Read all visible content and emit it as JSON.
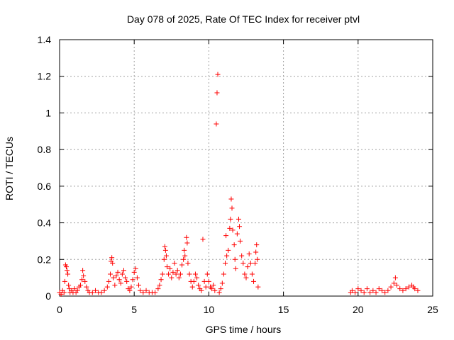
{
  "chart_data": {
    "type": "scatter",
    "title": "Day 078 of 2025, Rate Of TEC Index for receiver ptvl",
    "xlabel": "GPS time / hours",
    "ylabel": "ROTI / TECUs",
    "xlim": [
      0,
      25
    ],
    "ylim": [
      0,
      1.4
    ],
    "x_ticks": [
      0,
      5,
      10,
      15,
      20,
      25
    ],
    "x_tick_labels": [
      "0",
      "5",
      "10",
      "15",
      "20",
      "25"
    ],
    "y_ticks": [
      0,
      0.2,
      0.4,
      0.6,
      0.8,
      1,
      1.2,
      1.4
    ],
    "y_tick_labels": [
      "0",
      "0.2",
      "0.4",
      "0.6",
      "0.8",
      "1",
      "1.2",
      "1.4"
    ],
    "grid": true,
    "marker": "plus",
    "color": "#ff0000",
    "series": [
      {
        "name": "ROTI",
        "points": [
          [
            0.0,
            0.02
          ],
          [
            0.1,
            0.01
          ],
          [
            0.2,
            0.03
          ],
          [
            0.3,
            0.02
          ],
          [
            0.35,
            0.08
          ],
          [
            0.4,
            0.17
          ],
          [
            0.45,
            0.16
          ],
          [
            0.5,
            0.14
          ],
          [
            0.55,
            0.12
          ],
          [
            0.6,
            0.06
          ],
          [
            0.65,
            0.04
          ],
          [
            0.7,
            0.02
          ],
          [
            0.8,
            0.03
          ],
          [
            0.9,
            0.02
          ],
          [
            1.0,
            0.04
          ],
          [
            1.1,
            0.02
          ],
          [
            1.2,
            0.03
          ],
          [
            1.3,
            0.05
          ],
          [
            1.4,
            0.06
          ],
          [
            1.5,
            0.09
          ],
          [
            1.55,
            0.14
          ],
          [
            1.6,
            0.11
          ],
          [
            1.7,
            0.08
          ],
          [
            1.8,
            0.05
          ],
          [
            1.9,
            0.03
          ],
          [
            2.0,
            0.02
          ],
          [
            2.2,
            0.02
          ],
          [
            2.4,
            0.03
          ],
          [
            2.6,
            0.02
          ],
          [
            2.8,
            0.02
          ],
          [
            3.0,
            0.03
          ],
          [
            3.2,
            0.05
          ],
          [
            3.3,
            0.08
          ],
          [
            3.4,
            0.12
          ],
          [
            3.45,
            0.19
          ],
          [
            3.5,
            0.21
          ],
          [
            3.55,
            0.18
          ],
          [
            3.6,
            0.1
          ],
          [
            3.7,
            0.06
          ],
          [
            3.8,
            0.11
          ],
          [
            3.9,
            0.13
          ],
          [
            4.0,
            0.09
          ],
          [
            4.1,
            0.07
          ],
          [
            4.2,
            0.12
          ],
          [
            4.3,
            0.14
          ],
          [
            4.4,
            0.1
          ],
          [
            4.5,
            0.08
          ],
          [
            4.6,
            0.04
          ],
          [
            4.7,
            0.03
          ],
          [
            4.8,
            0.05
          ],
          [
            4.9,
            0.09
          ],
          [
            5.0,
            0.13
          ],
          [
            5.1,
            0.15
          ],
          [
            5.2,
            0.1
          ],
          [
            5.3,
            0.06
          ],
          [
            5.4,
            0.03
          ],
          [
            5.6,
            0.02
          ],
          [
            5.8,
            0.03
          ],
          [
            6.0,
            0.02
          ],
          [
            6.2,
            0.02
          ],
          [
            6.4,
            0.02
          ],
          [
            6.6,
            0.04
          ],
          [
            6.7,
            0.06
          ],
          [
            6.8,
            0.09
          ],
          [
            6.9,
            0.12
          ],
          [
            7.0,
            0.2
          ],
          [
            7.05,
            0.27
          ],
          [
            7.1,
            0.25
          ],
          [
            7.15,
            0.22
          ],
          [
            7.2,
            0.16
          ],
          [
            7.3,
            0.12
          ],
          [
            7.4,
            0.15
          ],
          [
            7.5,
            0.1
          ],
          [
            7.6,
            0.13
          ],
          [
            7.7,
            0.18
          ],
          [
            7.8,
            0.12
          ],
          [
            7.9,
            0.14
          ],
          [
            8.0,
            0.1
          ],
          [
            8.1,
            0.12
          ],
          [
            8.2,
            0.17
          ],
          [
            8.3,
            0.2
          ],
          [
            8.35,
            0.25
          ],
          [
            8.4,
            0.22
          ],
          [
            8.5,
            0.32
          ],
          [
            8.55,
            0.29
          ],
          [
            8.6,
            0.18
          ],
          [
            8.7,
            0.12
          ],
          [
            8.8,
            0.08
          ],
          [
            8.9,
            0.05
          ],
          [
            9.0,
            0.08
          ],
          [
            9.1,
            0.12
          ],
          [
            9.2,
            0.1
          ],
          [
            9.3,
            0.06
          ],
          [
            9.4,
            0.04
          ],
          [
            9.5,
            0.03
          ],
          [
            9.6,
            0.31
          ],
          [
            9.7,
            0.08
          ],
          [
            9.8,
            0.05
          ],
          [
            9.9,
            0.12
          ],
          [
            10.0,
            0.08
          ],
          [
            10.1,
            0.05
          ],
          [
            10.2,
            0.04
          ],
          [
            10.3,
            0.06
          ],
          [
            10.4,
            0.03
          ],
          [
            10.5,
            0.94
          ],
          [
            10.55,
            1.11
          ],
          [
            10.6,
            1.21
          ],
          [
            10.7,
            0.02
          ],
          [
            10.8,
            0.04
          ],
          [
            10.9,
            0.07
          ],
          [
            11.0,
            0.12
          ],
          [
            11.1,
            0.18
          ],
          [
            11.15,
            0.33
          ],
          [
            11.2,
            0.22
          ],
          [
            11.3,
            0.25
          ],
          [
            11.4,
            0.37
          ],
          [
            11.45,
            0.42
          ],
          [
            11.5,
            0.53
          ],
          [
            11.55,
            0.48
          ],
          [
            11.6,
            0.36
          ],
          [
            11.7,
            0.28
          ],
          [
            11.75,
            0.2
          ],
          [
            11.8,
            0.15
          ],
          [
            11.9,
            0.34
          ],
          [
            12.0,
            0.42
          ],
          [
            12.05,
            0.38
          ],
          [
            12.1,
            0.3
          ],
          [
            12.2,
            0.22
          ],
          [
            12.3,
            0.18
          ],
          [
            12.4,
            0.12
          ],
          [
            12.5,
            0.1
          ],
          [
            12.6,
            0.16
          ],
          [
            12.7,
            0.23
          ],
          [
            12.8,
            0.18
          ],
          [
            12.9,
            0.12
          ],
          [
            13.0,
            0.08
          ],
          [
            13.1,
            0.18
          ],
          [
            13.15,
            0.24
          ],
          [
            13.2,
            0.28
          ],
          [
            13.25,
            0.2
          ],
          [
            13.3,
            0.05
          ],
          [
            19.5,
            0.02
          ],
          [
            19.6,
            0.03
          ],
          [
            19.8,
            0.02
          ],
          [
            20.0,
            0.04
          ],
          [
            20.2,
            0.03
          ],
          [
            20.4,
            0.02
          ],
          [
            20.6,
            0.04
          ],
          [
            20.8,
            0.02
          ],
          [
            21.0,
            0.03
          ],
          [
            21.2,
            0.02
          ],
          [
            21.4,
            0.04
          ],
          [
            21.6,
            0.03
          ],
          [
            21.8,
            0.02
          ],
          [
            22.0,
            0.03
          ],
          [
            22.2,
            0.05
          ],
          [
            22.4,
            0.07
          ],
          [
            22.5,
            0.1
          ],
          [
            22.6,
            0.06
          ],
          [
            22.8,
            0.04
          ],
          [
            23.0,
            0.03
          ],
          [
            23.2,
            0.04
          ],
          [
            23.4,
            0.05
          ],
          [
            23.6,
            0.06
          ],
          [
            23.7,
            0.05
          ],
          [
            23.8,
            0.04
          ],
          [
            24.0,
            0.03
          ]
        ]
      }
    ]
  }
}
